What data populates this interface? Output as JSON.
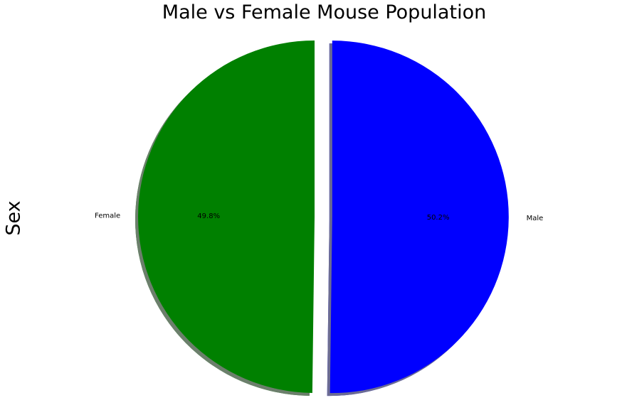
{
  "chart_data": {
    "type": "pie",
    "title": "Male vs Female Mouse Population",
    "ylabel": "Sex",
    "slices": [
      {
        "label": "Female",
        "value": 49.8,
        "pct_label": "49.8%",
        "color": "#008000",
        "explode": 0
      },
      {
        "label": "Male",
        "value": 50.2,
        "pct_label": "50.2%",
        "color": "#0000ff",
        "explode": 0.1
      }
    ],
    "shadow": true,
    "start_angle_deg": 90,
    "counterclockwise": true
  }
}
